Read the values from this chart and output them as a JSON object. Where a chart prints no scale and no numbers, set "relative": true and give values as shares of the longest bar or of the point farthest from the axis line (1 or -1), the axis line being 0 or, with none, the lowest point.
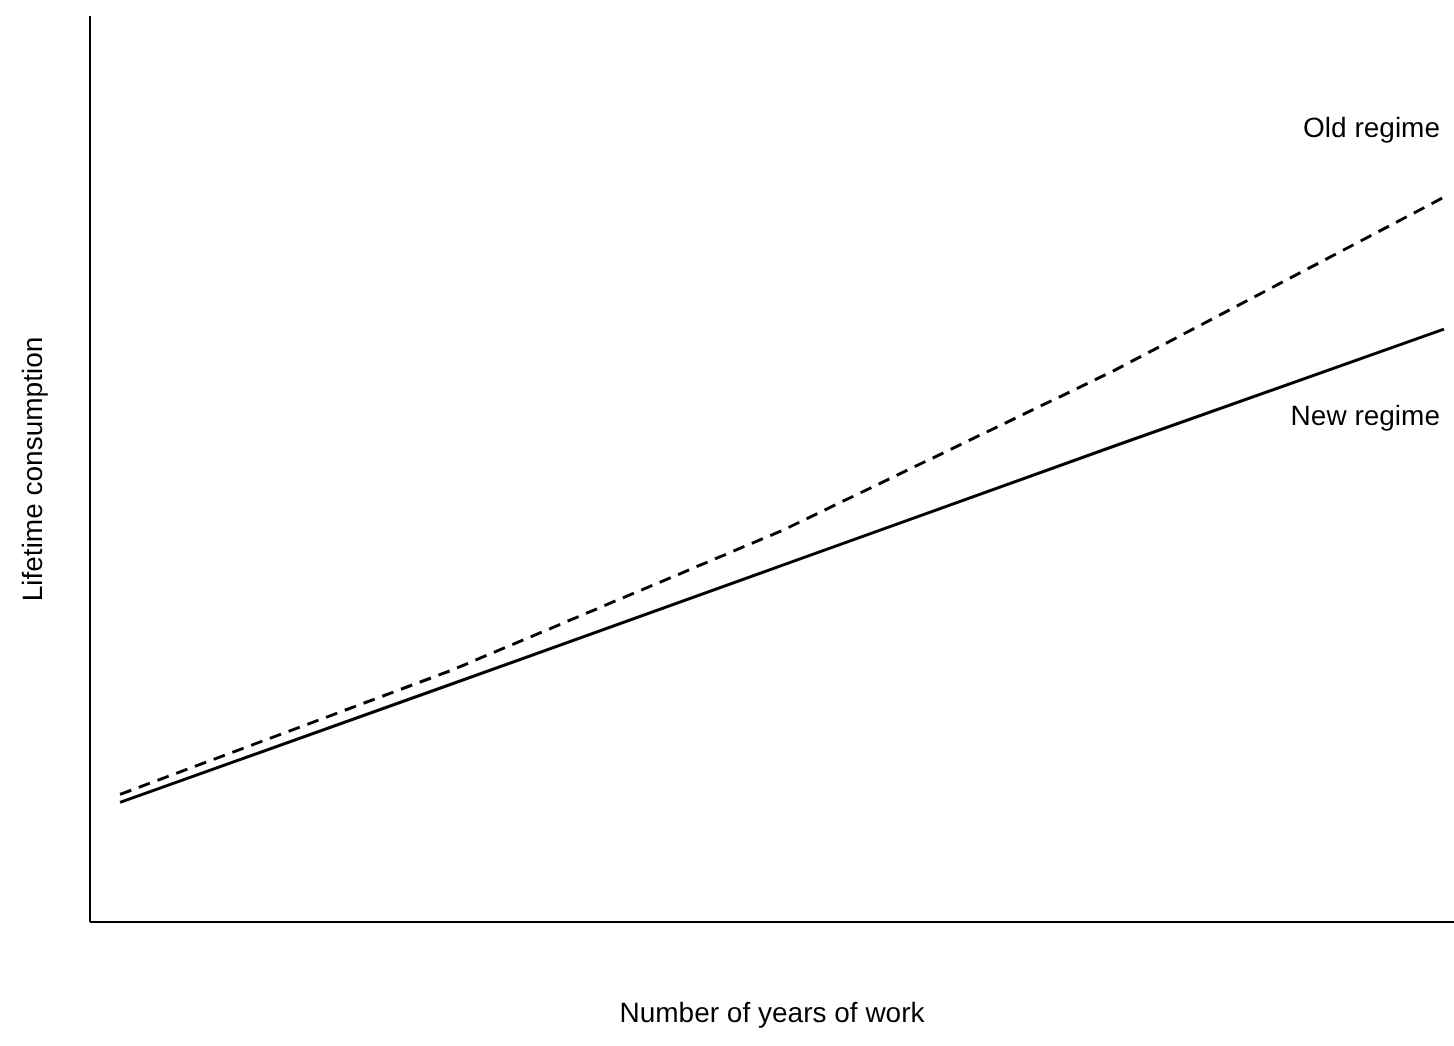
{
  "chart_data": {
    "type": "line",
    "xlabel": "Number of years of work",
    "ylabel": "Lifetime consumption",
    "relative": true,
    "legend": false,
    "grid": false,
    "marker": "none",
    "categories": [
      null,
      null,
      null,
      null,
      null
    ],
    "series": [
      {
        "name": "Old regime",
        "color": "#000000",
        "line_style": "dashed",
        "values": [
          0.176,
          0.347,
          0.54,
          0.76,
          1
        ]
      },
      {
        "name": "New regime",
        "color": "#000000",
        "line_style": "solid",
        "values": [
          0.165,
          0.328,
          0.492,
          0.656,
          0.818
        ]
      }
    ]
  }
}
